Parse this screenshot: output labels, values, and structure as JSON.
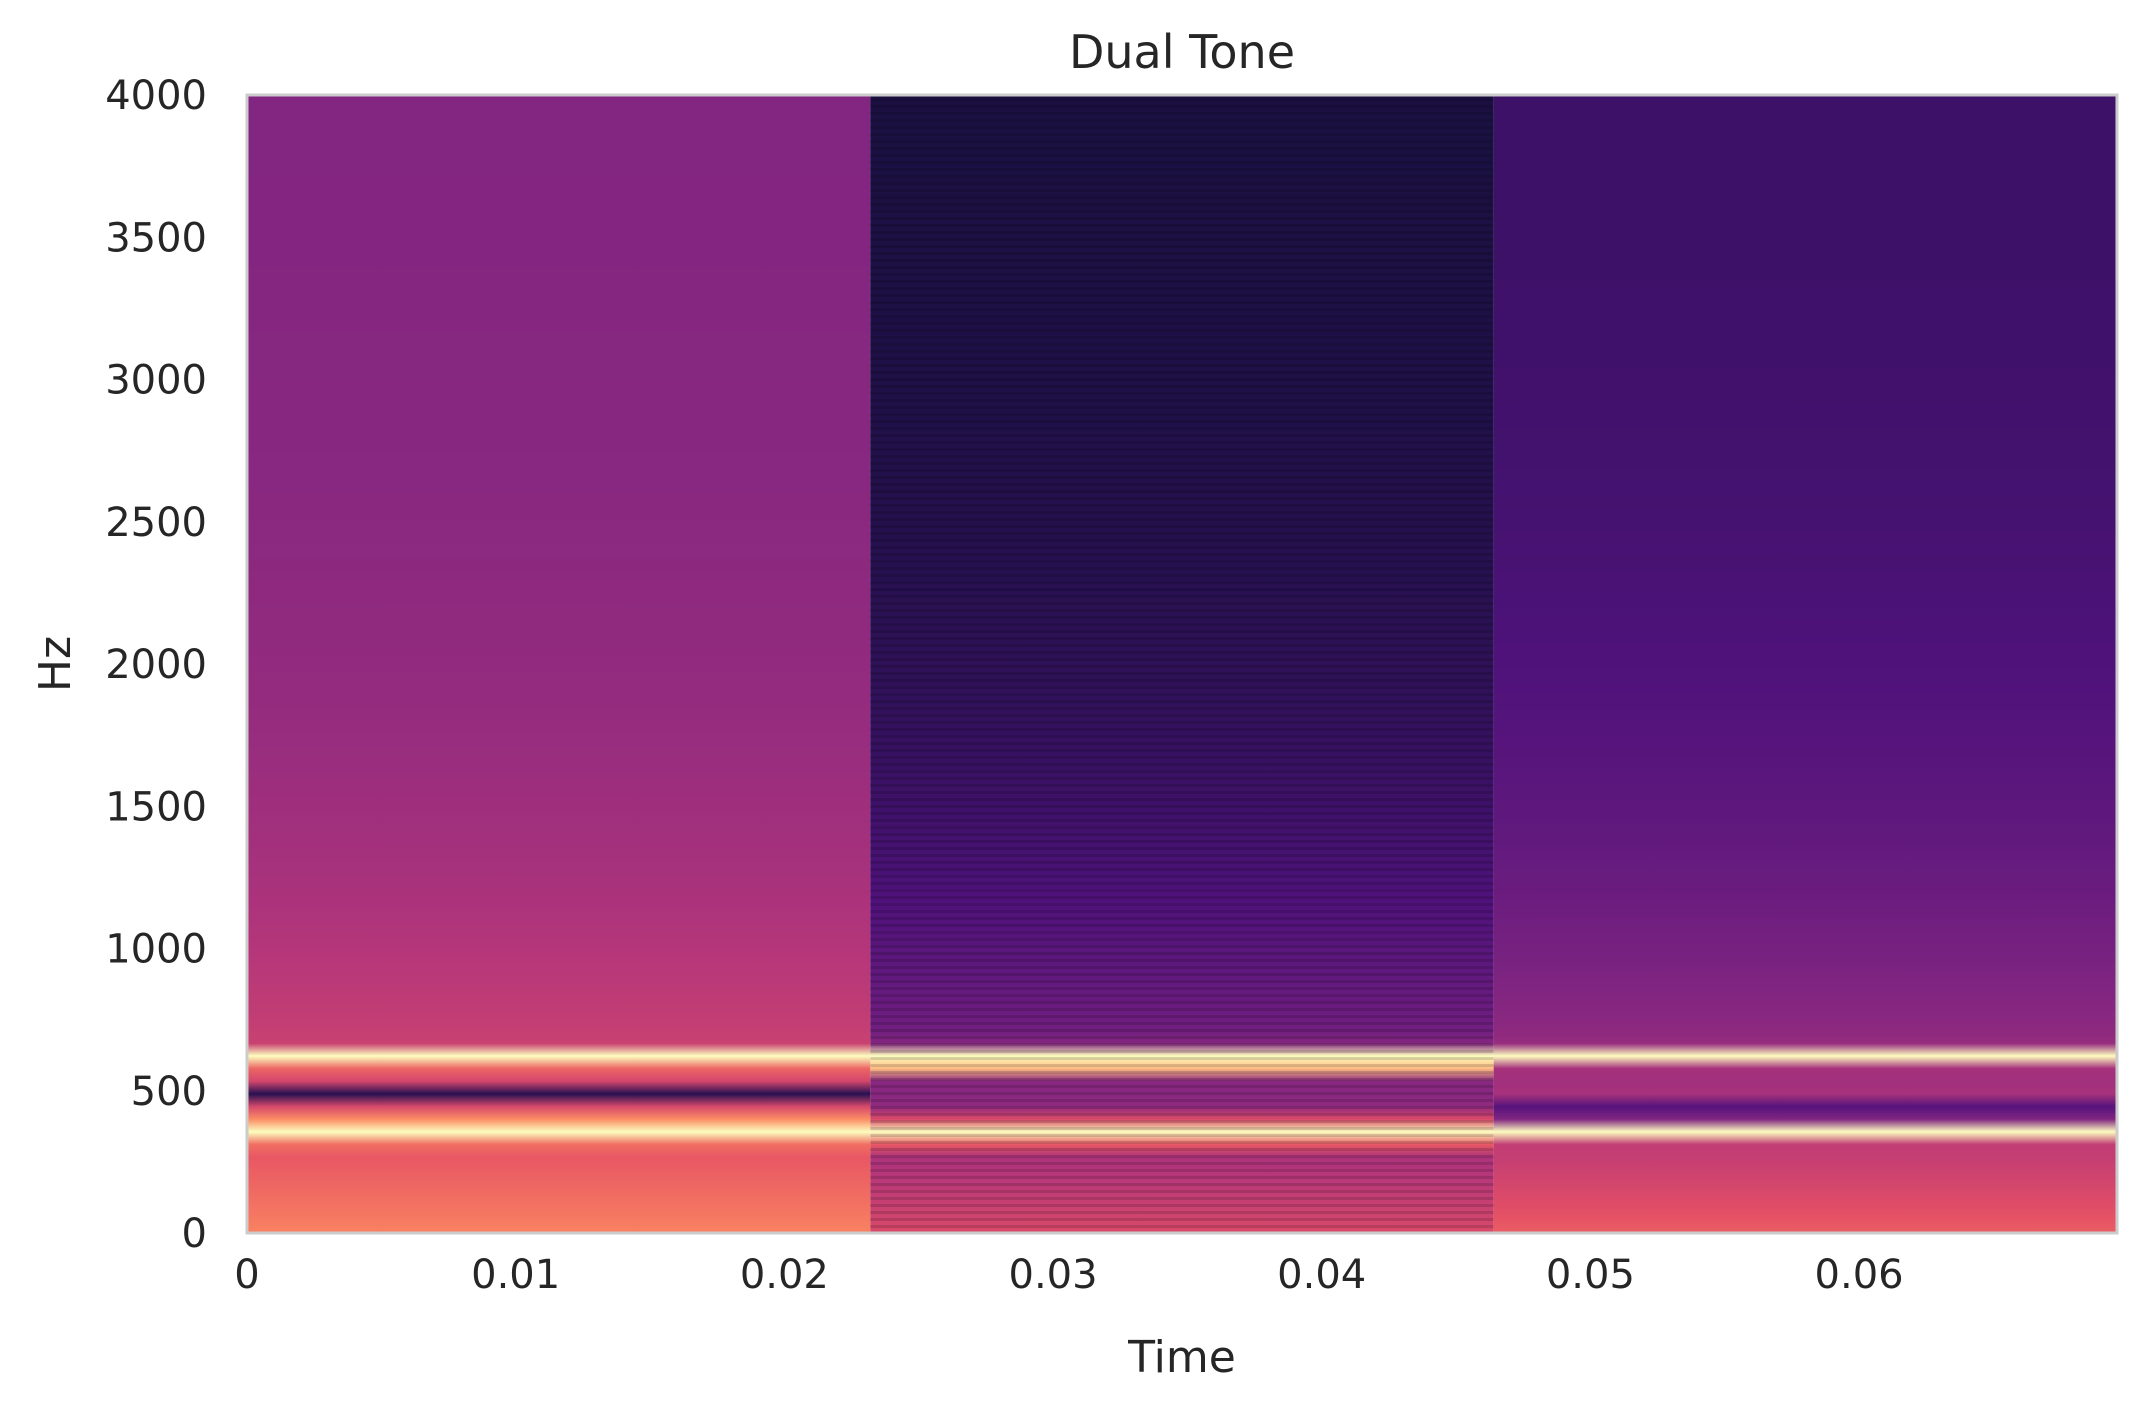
{
  "chart_data": {
    "type": "heatmap",
    "title": "Dual Tone",
    "xlabel": "Time",
    "ylabel": "Hz",
    "xlim": [
      0,
      0.0696
    ],
    "ylim": [
      0,
      4000
    ],
    "xticks": [
      {
        "value": 0,
        "label": "0"
      },
      {
        "value": 0.01,
        "label": "0.01"
      },
      {
        "value": 0.02,
        "label": "0.02"
      },
      {
        "value": 0.03,
        "label": "0.03"
      },
      {
        "value": 0.04,
        "label": "0.04"
      },
      {
        "value": 0.05,
        "label": "0.05"
      },
      {
        "value": 0.06,
        "label": "0.06"
      }
    ],
    "yticks": [
      {
        "value": 0,
        "label": "0"
      },
      {
        "value": 500,
        "label": "500"
      },
      {
        "value": 1000,
        "label": "1000"
      },
      {
        "value": 1500,
        "label": "1500"
      },
      {
        "value": 2000,
        "label": "2000"
      },
      {
        "value": 2500,
        "label": "2500"
      },
      {
        "value": 3000,
        "label": "3000"
      },
      {
        "value": 3500,
        "label": "3500"
      },
      {
        "value": 4000,
        "label": "4000"
      }
    ],
    "grid": false,
    "colormap": "magma",
    "frames": [
      {
        "t_start": 0,
        "t_end": 0.0232,
        "low_level": 0.74,
        "high_level": 0.38,
        "tones": [
          {
            "hz": 610,
            "width": 22
          },
          {
            "hz": 360,
            "width": 30
          }
        ],
        "notch": {
          "hz": 480,
          "width": 18
        },
        "striped": false
      },
      {
        "t_start": 0.0232,
        "t_end": 0.0464,
        "low_level": 0.6,
        "high_level": 0.12,
        "tones": [
          {
            "hz": 605,
            "width": 35
          },
          {
            "hz": 355,
            "width": 35
          }
        ],
        "notch": null,
        "striped": true
      },
      {
        "t_start": 0.0464,
        "t_end": 0.0696,
        "low_level": 0.66,
        "high_level": 0.2,
        "tones": [
          {
            "hz": 620,
            "width": 22
          },
          {
            "hz": 350,
            "width": 18
          }
        ],
        "notch": {
          "hz": 425,
          "width": 20
        },
        "striped": false
      }
    ]
  }
}
